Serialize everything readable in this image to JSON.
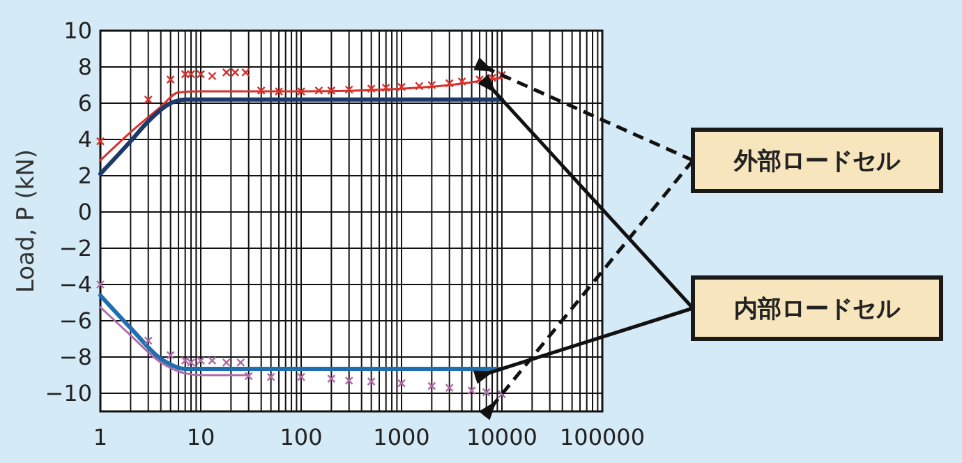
{
  "chart_data": {
    "type": "line",
    "ylabel": "Load, P (kN)",
    "log": "x",
    "grid": true,
    "xlim": [
      1,
      100000
    ],
    "xticks": [
      1,
      10,
      100,
      1000,
      10000,
      100000
    ],
    "ylim": [
      -11,
      10
    ],
    "yticks": [
      {
        "value": -10,
        "label": "−10"
      },
      {
        "value": -8,
        "label": "−8"
      },
      {
        "value": -6,
        "label": "−6"
      },
      {
        "value": -4,
        "label": "−4"
      },
      {
        "value": -2,
        "label": "−2"
      },
      0,
      2,
      4,
      6,
      8,
      10
    ],
    "annotations": [
      "外部ロードセル",
      "内部ロードセル"
    ],
    "series": [
      {
        "type": "line",
        "color": "#d9302a",
        "x": [
          1,
          2,
          4,
          6,
          10,
          100,
          1000,
          3000,
          10000
        ],
        "values": [
          2.85,
          4.4,
          5.8,
          6.6,
          6.65,
          6.65,
          6.8,
          7.0,
          7.4
        ]
      },
      {
        "type": "scatter",
        "marker": "cross",
        "color": "#d9302a",
        "x": [
          1,
          3,
          5,
          7,
          8,
          10,
          13,
          18,
          22,
          28,
          40,
          60,
          100,
          150,
          200,
          300,
          500,
          700,
          1000,
          1500,
          2000,
          3000,
          4000,
          6000,
          8000,
          10000
        ],
        "values": [
          3.9,
          6.2,
          7.3,
          7.6,
          7.6,
          7.6,
          7.5,
          7.7,
          7.7,
          7.7,
          6.7,
          6.65,
          6.65,
          6.7,
          6.7,
          6.75,
          6.8,
          6.85,
          6.9,
          6.95,
          7.0,
          7.1,
          7.2,
          7.3,
          7.4,
          7.55
        ]
      },
      {
        "type": "line",
        "color": "#1b3a6b",
        "x": [
          1,
          2,
          3,
          5,
          7,
          10000
        ],
        "values": [
          2.1,
          3.9,
          5.0,
          6.0,
          6.2,
          6.2
        ]
      },
      {
        "type": "line",
        "color": "#1f6fb0",
        "x": [
          1,
          2,
          4,
          7,
          10000
        ],
        "values": [
          -4.6,
          -6.4,
          -8.1,
          -8.65,
          -8.65
        ]
      },
      {
        "type": "line",
        "color": "#b06aa8",
        "x": [
          1,
          2,
          4,
          7,
          10,
          30
        ],
        "values": [
          -5.25,
          -6.8,
          -8.3,
          -8.9,
          -9.0,
          -9.0
        ]
      },
      {
        "type": "scatter",
        "marker": "cross",
        "color": "#b06aa8",
        "x": [
          1,
          3,
          5,
          7,
          8,
          10,
          13,
          18,
          25,
          30,
          50,
          100,
          200,
          300,
          500,
          1000,
          2000,
          3000,
          5000,
          7000,
          10000
        ],
        "values": [
          -4.0,
          -7.1,
          -7.9,
          -8.2,
          -8.3,
          -8.2,
          -8.2,
          -8.3,
          -8.3,
          -9.05,
          -9.1,
          -9.1,
          -9.2,
          -9.3,
          -9.35,
          -9.45,
          -9.6,
          -9.7,
          -9.85,
          -9.95,
          -10.05
        ]
      }
    ]
  }
}
